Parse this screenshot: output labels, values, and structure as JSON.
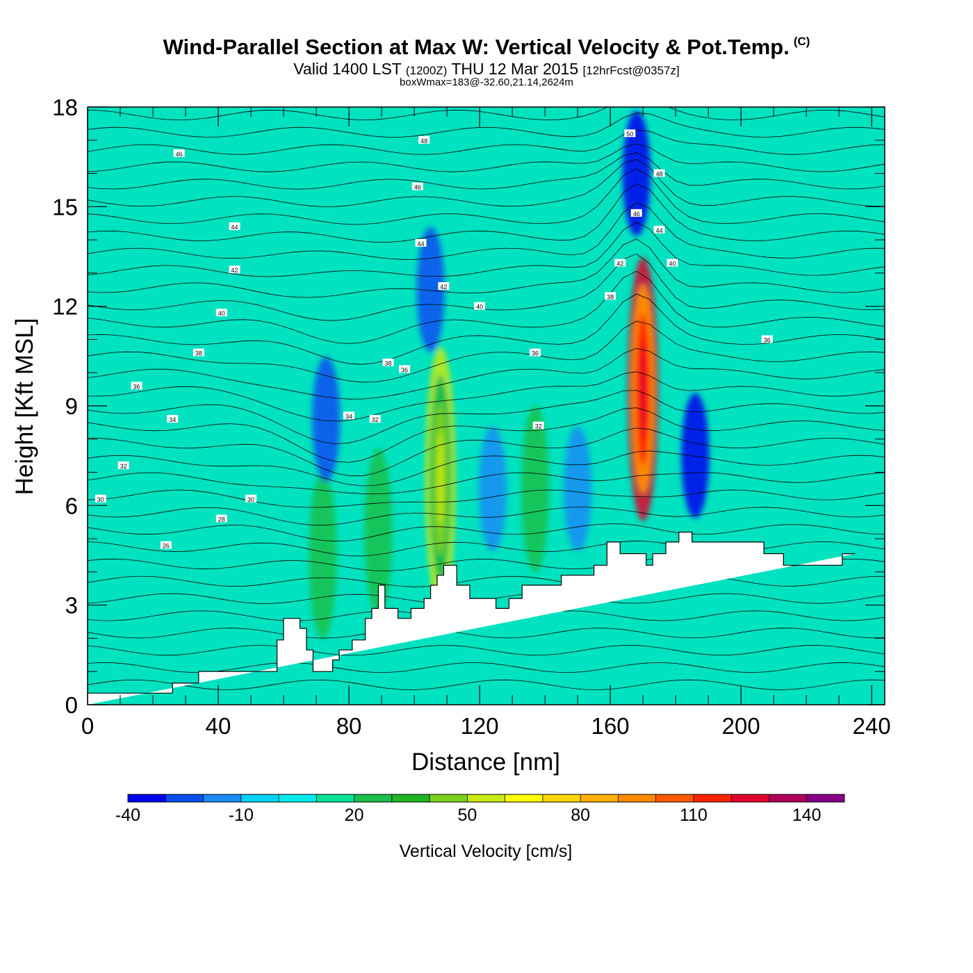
{
  "header": {
    "title": "Wind-Parallel Section at Max W: Vertical Velocity & Pot.Temp.",
    "copyright": "(C)",
    "subtitle_main": "Valid 1400 LST",
    "subtitle_z": "(1200Z)",
    "subtitle_date": "THU 12 Mar 2015",
    "subtitle_fcst": "[12hrFcst@0357z]",
    "box_line": "boxWmax=183@-32.60,21.14,2624m"
  },
  "chart_data": {
    "type": "heatmap",
    "xlabel": "Distance [nm]",
    "ylabel": "Height [Kft MSL]",
    "xlim": [
      0,
      244
    ],
    "ylim": [
      0,
      18
    ],
    "x_ticks": [
      "0",
      "40",
      "80",
      "120",
      "160",
      "200",
      "240"
    ],
    "y_ticks": [
      "0",
      "3",
      "6",
      "9",
      "12",
      "15",
      "18"
    ],
    "colorbar": {
      "label": "Vertical Velocity [cm/s]",
      "tick_labels": [
        "-40",
        "-10",
        "20",
        "50",
        "80",
        "110",
        "140"
      ],
      "colors": [
        "#0000ee",
        "#0a4cf0",
        "#1a8cf5",
        "#00d2f6",
        "#00ecec",
        "#00e39a",
        "#19bf4a",
        "#1fb524",
        "#7ad01e",
        "#c8ea10",
        "#ffff00",
        "#ffd700",
        "#ffb000",
        "#ff8a00",
        "#ff5a00",
        "#ff2400",
        "#e0002a",
        "#b2005a",
        "#880088"
      ]
    },
    "terrain_height_kft": {
      "x": [
        0,
        26,
        26,
        34,
        34,
        58,
        58,
        60,
        60,
        65,
        65,
        67,
        67,
        69,
        69,
        75,
        75,
        77,
        77,
        81,
        81,
        85,
        85,
        87,
        87,
        89,
        89,
        91,
        91,
        95,
        95,
        99,
        99,
        103,
        103,
        105,
        105,
        107,
        107,
        109,
        109,
        113,
        113,
        117,
        117,
        125,
        125,
        129,
        129,
        133,
        133,
        145,
        145,
        155,
        155,
        159,
        159,
        163,
        163,
        171,
        171,
        173,
        173,
        177,
        177,
        181,
        181,
        185,
        185,
        207,
        207,
        213,
        213,
        231,
        231,
        235,
        235,
        244
      ],
      "y": [
        0.35,
        0.35,
        0.65,
        0.65,
        1.0,
        1.0,
        1.95,
        1.95,
        2.6,
        2.6,
        2.3,
        2.3,
        1.65,
        1.65,
        1.0,
        1.0,
        1.35,
        1.35,
        1.65,
        1.65,
        1.95,
        1.95,
        2.6,
        2.6,
        2.9,
        2.9,
        3.6,
        3.6,
        2.9,
        2.9,
        2.6,
        2.6,
        2.9,
        2.9,
        3.2,
        3.2,
        3.6,
        3.6,
        3.9,
        3.9,
        4.2,
        4.2,
        3.6,
        3.6,
        3.2,
        3.2,
        2.9,
        2.9,
        3.2,
        3.2,
        3.6,
        3.6,
        3.9,
        3.9,
        4.2,
        4.2,
        4.9,
        4.9,
        4.55,
        4.55,
        4.2,
        4.2,
        4.55,
        4.55,
        4.9,
        4.9,
        5.2,
        5.2,
        4.9,
        4.9,
        4.55,
        4.55,
        4.2,
        4.2,
        4.55,
        4.55
      ]
    },
    "vertical_velocity_cells": [
      {
        "x": 72,
        "y": 4.5,
        "level": 6
      },
      {
        "x": 89,
        "y": 5.2,
        "level": 6
      },
      {
        "x": 108,
        "y": 6.8,
        "level": 9
      },
      {
        "x": 137,
        "y": 6.5,
        "level": 6
      },
      {
        "x": 170,
        "y": 9.5,
        "level": 16
      },
      {
        "x": 186,
        "y": 7.5,
        "level": 0
      },
      {
        "x": 73,
        "y": 8.6,
        "level": 1
      },
      {
        "x": 168,
        "y": 16.0,
        "level": 0
      },
      {
        "x": 105,
        "y": 12.5,
        "level": 1
      },
      {
        "x": 124,
        "y": 6.5,
        "level": 2
      },
      {
        "x": 150,
        "y": 6.5,
        "level": 2
      }
    ],
    "theta_contour_labels": [
      {
        "x": 28,
        "y": 16.6,
        "text": "46"
      },
      {
        "x": 103,
        "y": 17.0,
        "text": "48"
      },
      {
        "x": 101,
        "y": 15.6,
        "text": "46"
      },
      {
        "x": 45,
        "y": 14.4,
        "text": "44"
      },
      {
        "x": 102,
        "y": 13.9,
        "text": "44"
      },
      {
        "x": 45,
        "y": 13.1,
        "text": "42"
      },
      {
        "x": 109,
        "y": 12.6,
        "text": "42"
      },
      {
        "x": 41,
        "y": 11.8,
        "text": "40"
      },
      {
        "x": 120,
        "y": 12.0,
        "text": "40"
      },
      {
        "x": 34,
        "y": 10.6,
        "text": "38"
      },
      {
        "x": 92,
        "y": 10.3,
        "text": "38"
      },
      {
        "x": 97,
        "y": 10.1,
        "text": "36"
      },
      {
        "x": 15,
        "y": 9.6,
        "text": "36"
      },
      {
        "x": 26,
        "y": 8.6,
        "text": "34"
      },
      {
        "x": 80,
        "y": 8.7,
        "text": "34"
      },
      {
        "x": 88,
        "y": 8.6,
        "text": "32"
      },
      {
        "x": 138,
        "y": 8.4,
        "text": "32"
      },
      {
        "x": 11,
        "y": 7.2,
        "text": "32"
      },
      {
        "x": 4,
        "y": 6.2,
        "text": "30"
      },
      {
        "x": 50,
        "y": 6.2,
        "text": "30"
      },
      {
        "x": 41,
        "y": 5.6,
        "text": "28"
      },
      {
        "x": 24,
        "y": 4.8,
        "text": "26"
      },
      {
        "x": 166,
        "y": 17.2,
        "text": "50"
      },
      {
        "x": 175,
        "y": 16.0,
        "text": "48"
      },
      {
        "x": 168,
        "y": 14.8,
        "text": "46"
      },
      {
        "x": 175,
        "y": 14.3,
        "text": "44"
      },
      {
        "x": 163,
        "y": 13.3,
        "text": "42"
      },
      {
        "x": 179,
        "y": 13.3,
        "text": "40"
      },
      {
        "x": 160,
        "y": 12.3,
        "text": "38"
      },
      {
        "x": 137,
        "y": 10.6,
        "text": "36"
      },
      {
        "x": 208,
        "y": 11.0,
        "text": "36"
      }
    ]
  }
}
